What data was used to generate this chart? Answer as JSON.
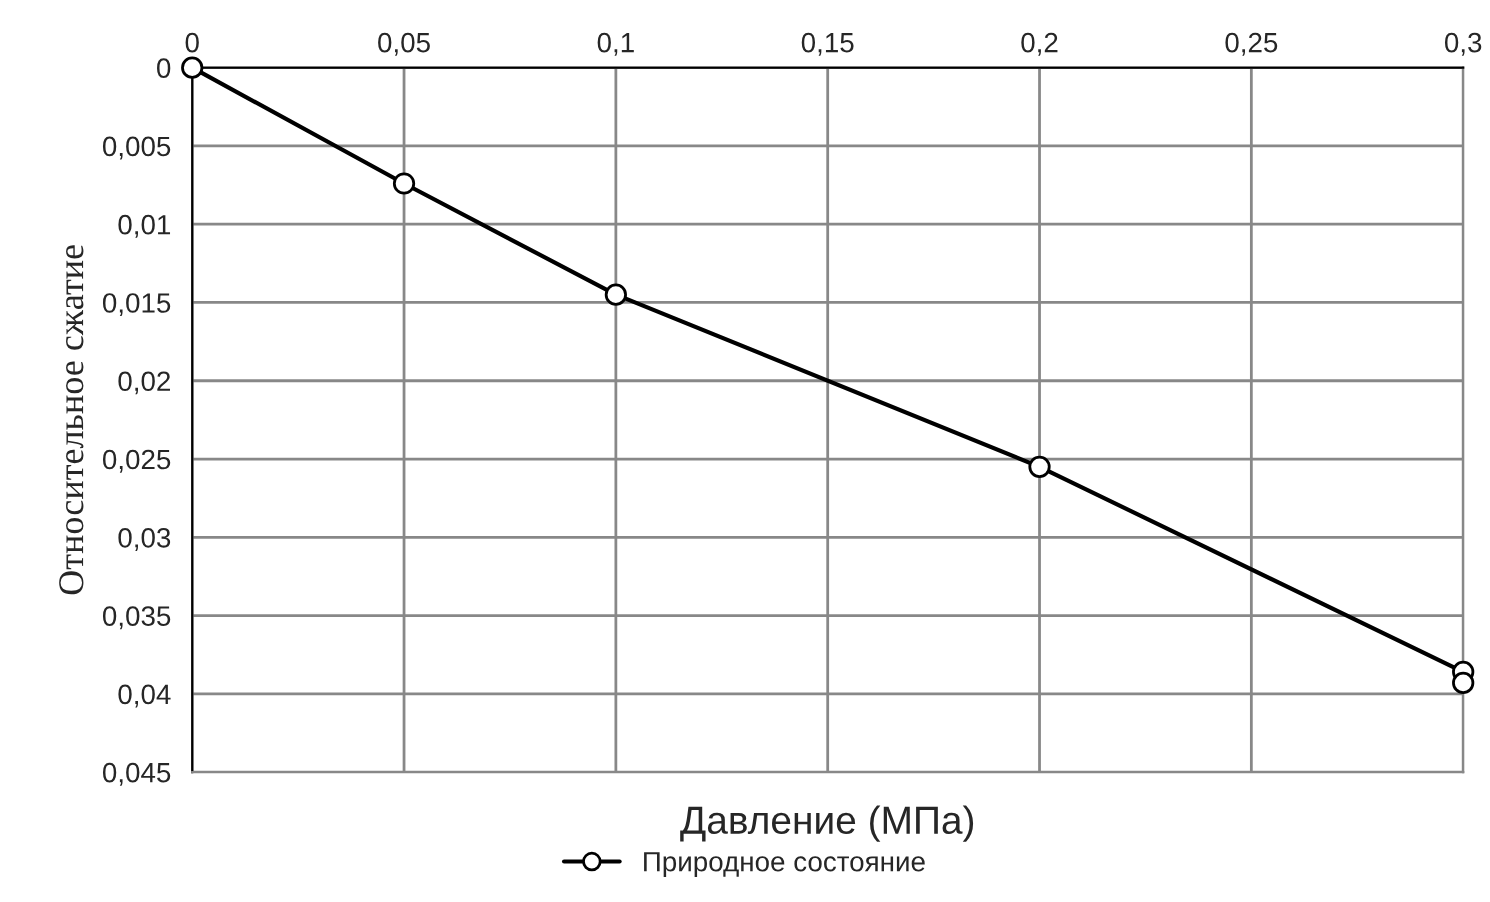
{
  "chart_data": {
    "type": "line",
    "xlabel": "Давление (МПа)",
    "ylabel": "Относительное сжатие",
    "series": [
      {
        "name": "Природное состояние",
        "color": "#000000",
        "x": [
          0,
          0.05,
          0.1,
          0.2,
          0.3,
          0.3
        ],
        "values": [
          0,
          0.0074,
          0.0145,
          0.0255,
          0.0386,
          0.0393
        ]
      }
    ],
    "xlim": [
      0,
      0.3
    ],
    "xticks": [
      0,
      {
        "value": 0.05,
        "label": "0,05"
      },
      {
        "value": 0.1,
        "label": "0,1"
      },
      {
        "value": 0.15,
        "label": "0,15"
      },
      {
        "value": 0.2,
        "label": "0,2"
      },
      {
        "value": 0.25,
        "label": "0,25"
      },
      {
        "value": 0.3,
        "label": "0,3"
      }
    ],
    "ylim": [
      0.045,
      0
    ],
    "yticks": [
      0,
      {
        "value": 0.005,
        "label": "0,005"
      },
      {
        "value": 0.01,
        "label": "0,01"
      },
      {
        "value": 0.015,
        "label": "0,015"
      },
      {
        "value": 0.02,
        "label": "0,02"
      },
      {
        "value": 0.025,
        "label": "0,025"
      },
      {
        "value": 0.03,
        "label": "0,03"
      },
      {
        "value": 0.035,
        "label": "0,035"
      },
      {
        "value": 0.04,
        "label": "0,04"
      },
      {
        "value": 0.045,
        "label": "0,045"
      }
    ],
    "grid": true,
    "legend": "bottom",
    "marker": "circle",
    "line_style": "solid"
  }
}
